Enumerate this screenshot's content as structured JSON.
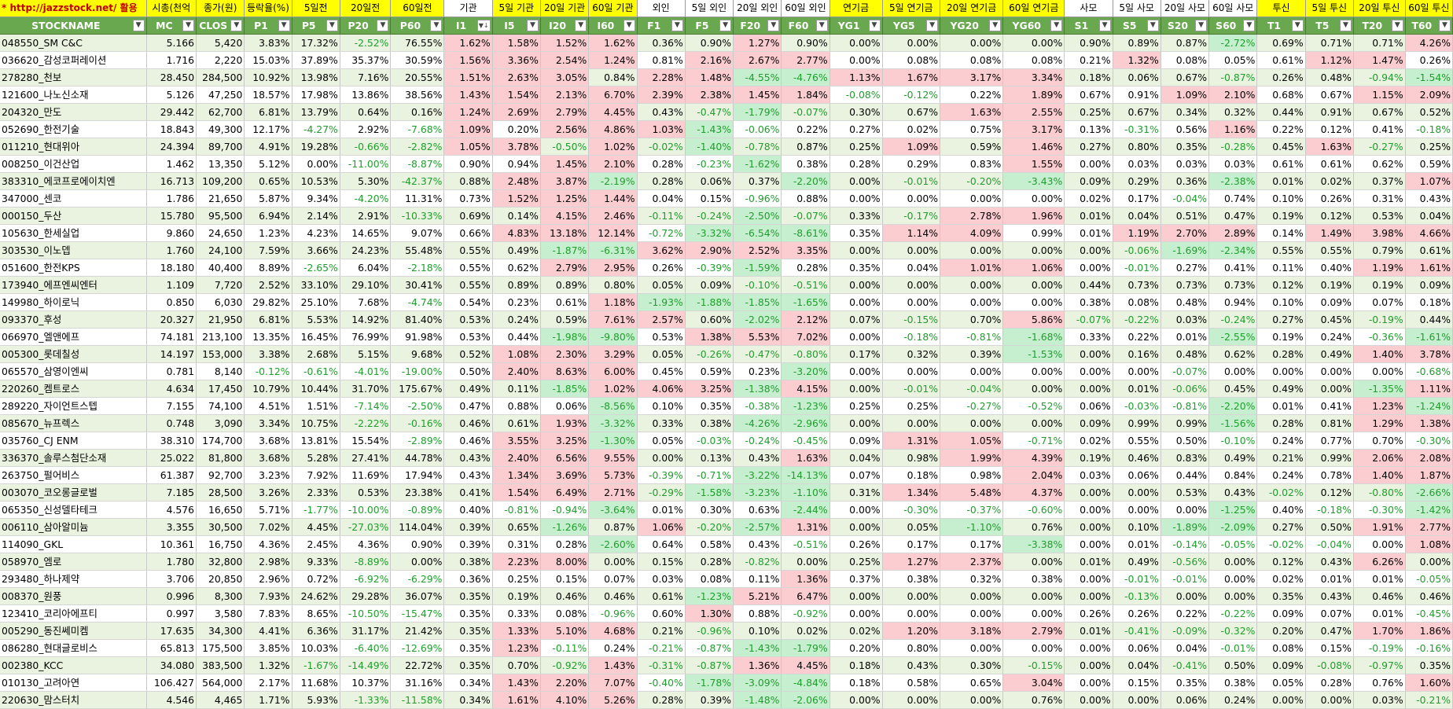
{
  "url_label": "* http://jazzstock.net/ 활용",
  "header_top": [
    "시총(천억",
    "종가(원)",
    "등락율(%)",
    "5일전",
    "20일전",
    "60일전",
    "기관",
    "5일 기관",
    "20일 기관",
    "60일 기관",
    "외인",
    "5일 외인",
    "20일 외인",
    "60일 외인",
    "연기금",
    "5일 연기금",
    "20일 연기금",
    "60일 연기금",
    "사모",
    "5일 사모",
    "20일 사모",
    "60일 사모",
    "투신",
    "5일 투신",
    "20일 투신",
    "60일 투신"
  ],
  "header_bottom": [
    "STOCKNAME",
    "MC",
    "CLOS",
    "P1",
    "P5",
    "P20",
    "P60",
    "I1",
    "I5",
    "I20",
    "I60",
    "F1",
    "F5",
    "F20",
    "F60",
    "YG1",
    "YG5",
    "YG20",
    "YG60",
    "S1",
    "S5",
    "S20",
    "S60",
    "T1",
    "T5",
    "T20",
    "T60"
  ],
  "colors": {
    "header_green": "#6aa84f",
    "header_yellow": "#ffff00",
    "url_red": "#c00000",
    "row_alt": "#eaf3e0",
    "pink": "#fbcdd0",
    "lightgreen": "#c6efcf",
    "neg_text": "#1f9e2c"
  },
  "dropdown_icon": "filter-dropdown-icon",
  "rows": [
    [
      "048550_SM C&C",
      "5.166",
      "5,420",
      "3.83%",
      "17.32%",
      "-2.52%",
      "76.55%",
      "1.62%",
      "1.58%",
      "1.52%",
      "1.62%",
      "0.36%",
      "0.90%",
      "1.27%",
      "0.90%",
      "0.00%",
      "0.00%",
      "0.00%",
      "0.00%",
      "0.90%",
      "0.89%",
      "0.87%",
      "-2.72%",
      "0.69%",
      "0.71%",
      "0.71%",
      "4.26%"
    ],
    [
      "036620_감성코퍼레이션",
      "1.716",
      "2,220",
      "15.03%",
      "37.89%",
      "35.37%",
      "30.59%",
      "1.56%",
      "3.36%",
      "2.54%",
      "1.24%",
      "0.81%",
      "2.16%",
      "2.67%",
      "2.77%",
      "0.00%",
      "0.08%",
      "0.08%",
      "0.08%",
      "0.21%",
      "1.32%",
      "0.08%",
      "0.05%",
      "0.61%",
      "1.12%",
      "1.47%",
      "0.26%"
    ],
    [
      "278280_천보",
      "28.450",
      "284,500",
      "10.92%",
      "13.98%",
      "7.16%",
      "20.55%",
      "1.51%",
      "2.63%",
      "3.05%",
      "0.84%",
      "2.28%",
      "1.48%",
      "-4.55%",
      "-4.76%",
      "1.13%",
      "1.67%",
      "3.17%",
      "3.34%",
      "0.18%",
      "0.06%",
      "0.67%",
      "-0.87%",
      "0.26%",
      "0.48%",
      "-0.94%",
      "-1.54%"
    ],
    [
      "121600_나노신소재",
      "5.126",
      "47,250",
      "18.57%",
      "17.98%",
      "13.86%",
      "38.56%",
      "1.43%",
      "1.54%",
      "2.13%",
      "6.70%",
      "2.39%",
      "2.38%",
      "1.45%",
      "1.84%",
      "-0.08%",
      "-0.12%",
      "0.22%",
      "1.89%",
      "0.67%",
      "0.91%",
      "1.09%",
      "2.10%",
      "0.68%",
      "0.67%",
      "1.15%",
      "2.09%"
    ],
    [
      "204320_만도",
      "29.442",
      "62,700",
      "6.81%",
      "13.79%",
      "0.64%",
      "0.16%",
      "1.24%",
      "2.69%",
      "2.79%",
      "4.45%",
      "0.43%",
      "-0.47%",
      "-1.79%",
      "-0.07%",
      "0.30%",
      "0.67%",
      "1.63%",
      "2.55%",
      "0.25%",
      "0.67%",
      "0.34%",
      "0.32%",
      "0.44%",
      "0.91%",
      "0.67%",
      "0.52%"
    ],
    [
      "052690_한전기술",
      "18.843",
      "49,300",
      "12.17%",
      "-4.27%",
      "2.92%",
      "-7.68%",
      "1.09%",
      "0.20%",
      "2.56%",
      "4.86%",
      "1.03%",
      "-1.43%",
      "-0.06%",
      "0.22%",
      "0.27%",
      "0.02%",
      "0.75%",
      "3.17%",
      "0.13%",
      "-0.31%",
      "0.56%",
      "1.16%",
      "0.22%",
      "0.12%",
      "0.41%",
      "-0.18%"
    ],
    [
      "011210_현대위아",
      "24.394",
      "89,700",
      "4.91%",
      "19.28%",
      "-0.66%",
      "-2.82%",
      "1.05%",
      "3.78%",
      "-0.50%",
      "1.02%",
      "-0.02%",
      "-1.40%",
      "-0.78%",
      "0.87%",
      "0.25%",
      "1.09%",
      "0.59%",
      "1.46%",
      "0.27%",
      "0.80%",
      "0.35%",
      "-0.28%",
      "0.45%",
      "1.63%",
      "-0.27%",
      "0.25%"
    ],
    [
      "008250_이건산업",
      "1.462",
      "13,350",
      "5.12%",
      "0.00%",
      "-11.00%",
      "-8.87%",
      "0.90%",
      "0.94%",
      "1.45%",
      "2.10%",
      "0.28%",
      "-0.23%",
      "-1.62%",
      "0.38%",
      "0.28%",
      "0.29%",
      "0.83%",
      "1.55%",
      "0.00%",
      "0.03%",
      "0.03%",
      "0.03%",
      "0.61%",
      "0.61%",
      "0.62%",
      "0.59%"
    ],
    [
      "383310_에코프로에이치엔",
      "16.713",
      "109,200",
      "0.65%",
      "10.53%",
      "5.30%",
      "-42.37%",
      "0.88%",
      "2.48%",
      "3.87%",
      "-2.19%",
      "0.28%",
      "0.06%",
      "0.37%",
      "-2.20%",
      "0.00%",
      "-0.01%",
      "-0.20%",
      "-3.43%",
      "0.09%",
      "0.29%",
      "0.36%",
      "-2.38%",
      "0.01%",
      "0.02%",
      "0.37%",
      "1.07%"
    ],
    [
      "347000_센코",
      "1.786",
      "21,650",
      "5.87%",
      "9.34%",
      "-4.20%",
      "11.31%",
      "0.73%",
      "1.52%",
      "1.25%",
      "1.44%",
      "0.04%",
      "0.15%",
      "-0.96%",
      "0.88%",
      "0.00%",
      "0.00%",
      "0.00%",
      "0.00%",
      "0.02%",
      "0.17%",
      "-0.04%",
      "0.74%",
      "0.10%",
      "0.26%",
      "0.31%",
      "0.43%"
    ],
    [
      "000150_두산",
      "15.780",
      "95,500",
      "6.94%",
      "2.14%",
      "2.91%",
      "-10.33%",
      "0.69%",
      "0.14%",
      "4.15%",
      "2.46%",
      "-0.11%",
      "-0.24%",
      "-2.50%",
      "-0.07%",
      "0.33%",
      "-0.17%",
      "2.78%",
      "1.96%",
      "0.01%",
      "0.04%",
      "0.51%",
      "0.47%",
      "0.19%",
      "0.12%",
      "0.53%",
      "0.04%"
    ],
    [
      "105630_한세실업",
      "9.860",
      "24,650",
      "1.23%",
      "4.23%",
      "14.65%",
      "9.07%",
      "0.66%",
      "4.83%",
      "13.18%",
      "12.14%",
      "-0.72%",
      "-3.32%",
      "-6.54%",
      "-8.61%",
      "0.35%",
      "1.14%",
      "4.09%",
      "0.99%",
      "0.01%",
      "1.19%",
      "2.70%",
      "2.89%",
      "0.14%",
      "1.49%",
      "3.98%",
      "4.66%"
    ],
    [
      "303530_이노뎁",
      "1.760",
      "24,100",
      "7.59%",
      "3.66%",
      "24.23%",
      "55.48%",
      "0.55%",
      "0.49%",
      "-1.87%",
      "-6.31%",
      "3.62%",
      "2.90%",
      "2.52%",
      "3.35%",
      "0.00%",
      "0.00%",
      "0.00%",
      "0.00%",
      "0.00%",
      "-0.06%",
      "-1.69%",
      "-2.34%",
      "0.55%",
      "0.55%",
      "0.79%",
      "0.61%"
    ],
    [
      "051600_한전KPS",
      "18.180",
      "40,400",
      "8.89%",
      "-2.65%",
      "6.04%",
      "-2.18%",
      "0.55%",
      "0.62%",
      "2.79%",
      "2.95%",
      "0.26%",
      "-0.39%",
      "-1.59%",
      "0.28%",
      "0.35%",
      "0.04%",
      "1.01%",
      "1.06%",
      "0.00%",
      "-0.01%",
      "0.27%",
      "0.41%",
      "0.11%",
      "0.40%",
      "1.19%",
      "1.61%"
    ],
    [
      "173940_에프엔씨엔터",
      "1.109",
      "7,720",
      "2.52%",
      "33.10%",
      "29.10%",
      "30.41%",
      "0.55%",
      "0.89%",
      "0.89%",
      "0.80%",
      "0.05%",
      "0.09%",
      "-0.10%",
      "-0.51%",
      "0.00%",
      "0.00%",
      "0.00%",
      "0.00%",
      "0.44%",
      "0.73%",
      "0.73%",
      "0.73%",
      "0.12%",
      "0.19%",
      "0.19%",
      "0.09%"
    ],
    [
      "149980_하이로닉",
      "0.850",
      "6,030",
      "29.82%",
      "25.10%",
      "7.68%",
      "-4.74%",
      "0.54%",
      "0.23%",
      "0.61%",
      "1.18%",
      "-1.93%",
      "-1.88%",
      "-1.85%",
      "-1.65%",
      "0.00%",
      "0.00%",
      "0.00%",
      "0.00%",
      "0.38%",
      "0.08%",
      "0.48%",
      "0.94%",
      "0.10%",
      "0.09%",
      "0.07%",
      "0.18%"
    ],
    [
      "093370_후성",
      "20.327",
      "21,950",
      "6.81%",
      "5.53%",
      "14.92%",
      "81.40%",
      "0.53%",
      "0.24%",
      "0.59%",
      "7.61%",
      "2.57%",
      "0.60%",
      "-2.02%",
      "2.12%",
      "0.07%",
      "-0.15%",
      "0.70%",
      "5.86%",
      "-0.07%",
      "-0.22%",
      "0.03%",
      "-0.24%",
      "0.27%",
      "0.45%",
      "-0.19%",
      "0.44%"
    ],
    [
      "066970_엘앤에프",
      "74.181",
      "213,100",
      "13.35%",
      "16.45%",
      "76.99%",
      "91.98%",
      "0.53%",
      "0.44%",
      "-1.98%",
      "-9.80%",
      "0.53%",
      "1.38%",
      "5.53%",
      "7.02%",
      "0.00%",
      "-0.18%",
      "-0.81%",
      "-1.68%",
      "0.33%",
      "0.22%",
      "0.01%",
      "-2.55%",
      "0.19%",
      "0.24%",
      "-0.36%",
      "-1.61%"
    ],
    [
      "005300_롯데칠성",
      "14.197",
      "153,000",
      "3.38%",
      "2.68%",
      "5.15%",
      "9.68%",
      "0.52%",
      "1.08%",
      "2.30%",
      "3.29%",
      "0.05%",
      "-0.26%",
      "-0.47%",
      "-0.80%",
      "0.17%",
      "0.32%",
      "0.39%",
      "-1.53%",
      "0.00%",
      "0.16%",
      "0.48%",
      "0.62%",
      "0.28%",
      "0.49%",
      "1.40%",
      "3.78%"
    ],
    [
      "065570_삼영이엔씨",
      "0.781",
      "8,140",
      "-0.12%",
      "-0.61%",
      "-4.01%",
      "-19.00%",
      "0.50%",
      "2.40%",
      "8.63%",
      "6.00%",
      "0.45%",
      "0.59%",
      "0.23%",
      "-3.20%",
      "0.00%",
      "0.00%",
      "0.00%",
      "0.00%",
      "0.00%",
      "0.00%",
      "-0.07%",
      "0.00%",
      "0.00%",
      "0.00%",
      "0.00%",
      "-0.68%"
    ],
    [
      "220260_켐트로스",
      "4.634",
      "17,450",
      "10.79%",
      "10.44%",
      "31.70%",
      "175.67%",
      "0.49%",
      "0.11%",
      "-1.85%",
      "1.02%",
      "4.06%",
      "3.25%",
      "-1.38%",
      "4.15%",
      "0.00%",
      "-0.01%",
      "-0.04%",
      "0.00%",
      "0.00%",
      "0.01%",
      "-0.06%",
      "0.45%",
      "0.49%",
      "0.00%",
      "-1.35%",
      "1.11%"
    ],
    [
      "289220_자이언트스텝",
      "7.155",
      "74,100",
      "4.51%",
      "1.51%",
      "-7.14%",
      "-2.50%",
      "0.47%",
      "0.88%",
      "0.06%",
      "-8.56%",
      "0.10%",
      "0.35%",
      "-0.38%",
      "-1.23%",
      "0.25%",
      "0.25%",
      "-0.27%",
      "-0.52%",
      "0.06%",
      "-0.03%",
      "-0.81%",
      "-2.20%",
      "0.01%",
      "0.41%",
      "1.23%",
      "-1.24%"
    ],
    [
      "085670_뉴프렉스",
      "0.748",
      "3,090",
      "3.34%",
      "10.75%",
      "-2.22%",
      "-0.16%",
      "0.46%",
      "0.61%",
      "1.93%",
      "-3.32%",
      "0.33%",
      "0.38%",
      "-4.26%",
      "-2.96%",
      "0.00%",
      "0.00%",
      "0.00%",
      "0.00%",
      "0.09%",
      "0.99%",
      "0.99%",
      "-1.56%",
      "0.28%",
      "0.81%",
      "1.29%",
      "1.38%"
    ],
    [
      "035760_CJ ENM",
      "38.310",
      "174,700",
      "3.68%",
      "13.81%",
      "15.54%",
      "-2.89%",
      "0.46%",
      "3.55%",
      "3.25%",
      "-1.30%",
      "0.05%",
      "-0.03%",
      "-0.24%",
      "-0.45%",
      "0.09%",
      "1.31%",
      "1.05%",
      "-0.71%",
      "0.02%",
      "0.55%",
      "0.50%",
      "-0.10%",
      "0.24%",
      "0.77%",
      "0.70%",
      "-0.30%"
    ],
    [
      "336370_솔루스첨단소재",
      "25.022",
      "81,800",
      "3.68%",
      "5.28%",
      "27.41%",
      "44.78%",
      "0.43%",
      "2.40%",
      "6.56%",
      "9.55%",
      "0.00%",
      "0.13%",
      "0.43%",
      "1.63%",
      "0.04%",
      "0.98%",
      "1.99%",
      "4.39%",
      "0.19%",
      "0.46%",
      "0.83%",
      "0.49%",
      "0.21%",
      "0.99%",
      "2.06%",
      "2.08%"
    ],
    [
      "263750_펄어비스",
      "61.387",
      "92,700",
      "3.23%",
      "7.92%",
      "11.69%",
      "17.94%",
      "0.43%",
      "1.34%",
      "3.69%",
      "5.73%",
      "-0.39%",
      "-0.71%",
      "-3.22%",
      "-14.13%",
      "0.07%",
      "0.18%",
      "0.98%",
      "2.04%",
      "0.03%",
      "0.06%",
      "0.44%",
      "0.84%",
      "0.24%",
      "0.78%",
      "1.40%",
      "1.87%"
    ],
    [
      "003070_코오롱글로벌",
      "7.185",
      "28,500",
      "3.26%",
      "2.33%",
      "0.53%",
      "23.38%",
      "0.41%",
      "1.54%",
      "6.49%",
      "2.71%",
      "-0.29%",
      "-1.58%",
      "-3.23%",
      "-1.10%",
      "0.31%",
      "1.34%",
      "5.48%",
      "4.37%",
      "0.00%",
      "0.00%",
      "0.53%",
      "0.43%",
      "-0.02%",
      "0.12%",
      "-0.80%",
      "-2.66%"
    ],
    [
      "065350_신성델타테크",
      "4.576",
      "16,650",
      "5.71%",
      "-1.77%",
      "-10.00%",
      "-0.89%",
      "0.40%",
      "-0.81%",
      "-0.94%",
      "-3.64%",
      "0.01%",
      "0.30%",
      "0.63%",
      "-2.44%",
      "0.00%",
      "-0.30%",
      "-0.37%",
      "-0.60%",
      "0.00%",
      "0.00%",
      "0.00%",
      "-1.25%",
      "0.40%",
      "-0.18%",
      "-0.30%",
      "-1.42%"
    ],
    [
      "006110_삼아알미늄",
      "3.355",
      "30,500",
      "7.02%",
      "4.45%",
      "-27.03%",
      "114.04%",
      "0.39%",
      "0.65%",
      "-1.26%",
      "0.87%",
      "1.06%",
      "-0.20%",
      "-2.57%",
      "1.31%",
      "0.00%",
      "0.05%",
      "-1.10%",
      "0.76%",
      "0.00%",
      "0.10%",
      "-1.89%",
      "-2.09%",
      "0.27%",
      "0.50%",
      "1.91%",
      "2.77%"
    ],
    [
      "114090_GKL",
      "10.361",
      "16,750",
      "4.36%",
      "2.45%",
      "4.36%",
      "0.90%",
      "0.39%",
      "0.31%",
      "0.28%",
      "-2.60%",
      "0.64%",
      "0.58%",
      "0.43%",
      "-0.51%",
      "0.26%",
      "0.17%",
      "0.17%",
      "-3.38%",
      "0.00%",
      "0.01%",
      "-0.14%",
      "-0.05%",
      "-0.02%",
      "-0.04%",
      "0.00%",
      "1.08%"
    ],
    [
      "058970_엠로",
      "1.780",
      "32,800",
      "2.98%",
      "9.33%",
      "-8.89%",
      "0.00%",
      "0.38%",
      "2.23%",
      "8.00%",
      "0.00%",
      "0.15%",
      "0.28%",
      "-0.82%",
      "0.00%",
      "0.25%",
      "1.27%",
      "2.37%",
      "0.00%",
      "0.01%",
      "0.49%",
      "-0.56%",
      "0.00%",
      "0.12%",
      "0.43%",
      "6.26%",
      "0.00%"
    ],
    [
      "293480_하나제약",
      "3.706",
      "20,850",
      "2.96%",
      "0.72%",
      "-6.92%",
      "-6.29%",
      "0.36%",
      "0.25%",
      "0.15%",
      "0.07%",
      "0.03%",
      "0.08%",
      "0.11%",
      "1.36%",
      "0.37%",
      "0.38%",
      "0.32%",
      "0.38%",
      "0.00%",
      "-0.01%",
      "-0.01%",
      "0.00%",
      "0.02%",
      "0.01%",
      "0.01%",
      "-0.05%"
    ],
    [
      "008370_원풍",
      "0.996",
      "8,300",
      "7.93%",
      "24.62%",
      "29.28%",
      "36.07%",
      "0.35%",
      "0.19%",
      "0.46%",
      "0.46%",
      "0.61%",
      "-1.23%",
      "5.21%",
      "6.47%",
      "0.00%",
      "0.00%",
      "0.00%",
      "0.00%",
      "0.00%",
      "-0.13%",
      "0.00%",
      "0.00%",
      "0.35%",
      "0.43%",
      "0.46%",
      "0.46%"
    ],
    [
      "123410_코리아에프티",
      "0.997",
      "3,580",
      "7.83%",
      "8.65%",
      "-10.50%",
      "-15.47%",
      "0.35%",
      "0.33%",
      "0.08%",
      "-0.96%",
      "0.60%",
      "1.30%",
      "0.88%",
      "-0.92%",
      "0.00%",
      "0.00%",
      "0.00%",
      "0.00%",
      "0.26%",
      "0.26%",
      "0.22%",
      "-0.22%",
      "0.09%",
      "0.07%",
      "0.01%",
      "-0.45%"
    ],
    [
      "005290_동진쎄미켐",
      "17.635",
      "34,300",
      "4.41%",
      "6.36%",
      "31.17%",
      "21.42%",
      "0.35%",
      "1.33%",
      "5.10%",
      "4.68%",
      "0.21%",
      "-0.96%",
      "0.10%",
      "0.02%",
      "0.02%",
      "1.20%",
      "3.18%",
      "2.79%",
      "0.01%",
      "-0.41%",
      "-0.09%",
      "-0.32%",
      "0.20%",
      "0.47%",
      "1.70%",
      "1.86%"
    ],
    [
      "086280_현대글로비스",
      "65.813",
      "175,500",
      "3.85%",
      "10.03%",
      "-6.40%",
      "-12.69%",
      "0.35%",
      "1.23%",
      "-0.11%",
      "0.24%",
      "-0.21%",
      "-0.87%",
      "-1.43%",
      "-1.79%",
      "0.20%",
      "0.80%",
      "0.00%",
      "0.00%",
      "0.00%",
      "0.06%",
      "0.04%",
      "-0.01%",
      "0.08%",
      "0.15%",
      "-0.19%",
      "-0.16%"
    ],
    [
      "002380_KCC",
      "34.080",
      "383,500",
      "1.32%",
      "-1.67%",
      "-14.49%",
      "22.72%",
      "0.35%",
      "0.70%",
      "-0.92%",
      "1.43%",
      "-0.31%",
      "-0.87%",
      "1.36%",
      "4.45%",
      "0.18%",
      "0.43%",
      "0.30%",
      "-0.15%",
      "0.00%",
      "0.04%",
      "-0.41%",
      "0.50%",
      "0.09%",
      "-0.08%",
      "-0.97%",
      "0.35%"
    ],
    [
      "010130_고려아연",
      "106.427",
      "564,000",
      "2.17%",
      "11.68%",
      "10.37%",
      "31.16%",
      "0.34%",
      "1.43%",
      "2.20%",
      "7.07%",
      "-0.40%",
      "-1.78%",
      "-3.09%",
      "-4.84%",
      "0.18%",
      "0.58%",
      "0.65%",
      "3.04%",
      "0.00%",
      "0.15%",
      "0.35%",
      "0.38%",
      "0.05%",
      "0.28%",
      "0.76%",
      "1.60%"
    ],
    [
      "220630_맘스터치",
      "4.546",
      "4,465",
      "1.71%",
      "5.93%",
      "-1.33%",
      "-11.58%",
      "0.34%",
      "1.61%",
      "4.10%",
      "5.26%",
      "0.28%",
      "0.39%",
      "-1.48%",
      "-2.06%",
      "0.00%",
      "0.00%",
      "0.00%",
      "0.76%",
      "0.00%",
      "0.00%",
      "0.06%",
      "0.24%",
      "0.00%",
      "0.00%",
      "0.03%",
      "-0.21%"
    ]
  ]
}
